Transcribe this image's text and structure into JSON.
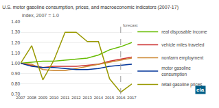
{
  "chart_data": {
    "type": "line",
    "title": "U.S. motor gasoline consumption, prices, and macroeconomic indicators (2007-17)",
    "subtitle": "index, 2007 = 1.0",
    "x": [
      2007,
      2008,
      2009,
      2010,
      2011,
      2012,
      2013,
      2014,
      2015,
      2016,
      2017
    ],
    "series": [
      {
        "name": "real disposable income",
        "color": "#66bb00",
        "values": [
          1.0,
          1.01,
          1.02,
          1.02,
          1.03,
          1.04,
          1.05,
          1.08,
          1.13,
          1.16,
          1.2
        ]
      },
      {
        "name": "vehicle miles traveled",
        "color": "#cc3333",
        "values": [
          1.0,
          0.98,
          0.96,
          0.97,
          0.97,
          0.97,
          0.98,
          0.99,
          1.02,
          1.04,
          1.06
        ]
      },
      {
        "name": "nonfarm employment",
        "color": "#cc8833",
        "values": [
          1.0,
          0.99,
          0.94,
          0.93,
          0.93,
          0.95,
          0.97,
          0.99,
          1.01,
          1.03,
          1.05
        ]
      },
      {
        "name": "motor gasoline\nconsumption",
        "color": "#003399",
        "values": [
          1.0,
          0.97,
          0.96,
          0.96,
          0.95,
          0.94,
          0.94,
          0.95,
          0.97,
          0.98,
          0.99
        ]
      },
      {
        "name": "retail gasoline prices",
        "color": "#999900",
        "values": [
          1.0,
          1.17,
          0.84,
          1.03,
          1.3,
          1.3,
          1.21,
          1.21,
          0.85,
          0.72,
          0.8
        ]
      }
    ],
    "xlim": [
      2007,
      2017
    ],
    "xticks": [
      2007,
      2008,
      2009,
      2010,
      2011,
      2012,
      2013,
      2014,
      2015,
      2016,
      2017
    ],
    "ylim": [
      0.7,
      1.4
    ],
    "yticks": [
      {
        "value": 0.7,
        "label": "0.70"
      },
      {
        "value": 0.8,
        "label": "0.80"
      },
      {
        "value": 0.9,
        "label": "0.90"
      },
      {
        "value": 1.0,
        "label": "1.00"
      },
      {
        "value": 1.1,
        "label": "1.10"
      },
      {
        "value": 1.2,
        "label": "1.20"
      },
      {
        "value": 1.3,
        "label": "1.30"
      },
      {
        "value": 1.4,
        "label": "1.40"
      }
    ],
    "grid": true,
    "legend": "right",
    "annotations": [
      {
        "x": 2016,
        "text": "forecast"
      },
      {
        "text": "eia"
      }
    ]
  }
}
